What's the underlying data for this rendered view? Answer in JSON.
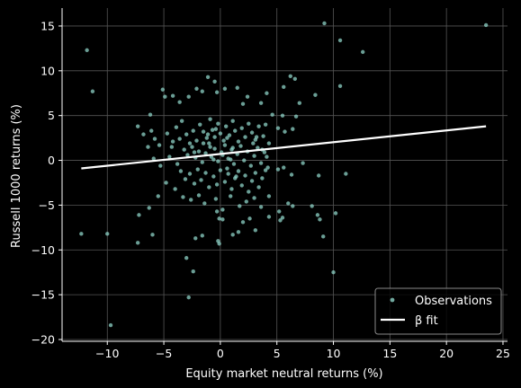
{
  "chart_data": {
    "type": "scatter",
    "xlabel": "Equity market neutral returns (%)",
    "ylabel": "Russell 1000 returns (%)",
    "xlim": [
      -14,
      25.4
    ],
    "ylim": [
      -20.2,
      17
    ],
    "xticks": [
      -10,
      -5,
      0,
      5,
      10,
      15,
      20,
      25
    ],
    "yticks": [
      -20,
      -15,
      -10,
      -5,
      0,
      5,
      10,
      15
    ],
    "xtick_labels": [
      "−10",
      "−5",
      "0",
      "5",
      "10",
      "15",
      "20",
      "25"
    ],
    "ytick_labels": [
      "−20",
      "−15",
      "−10",
      "−5",
      "0",
      "5",
      "10",
      "15"
    ],
    "grid": true,
    "legend_position": "lower-right",
    "legend": [
      "Observations",
      "β fit"
    ],
    "colors": {
      "background": "#000000",
      "points": "#8dd3c7",
      "fit": "#ffffff",
      "grid": "#555555",
      "axes": "#ffffff"
    },
    "series": [
      {
        "name": "Observations",
        "kind": "scatter",
        "points": [
          [
            -11.8,
            12.3
          ],
          [
            -11.3,
            7.7
          ],
          [
            -12.3,
            -8.2
          ],
          [
            -10.0,
            -8.2
          ],
          [
            -9.7,
            -18.4
          ],
          [
            9.2,
            15.3
          ],
          [
            10.6,
            13.4
          ],
          [
            12.6,
            12.1
          ],
          [
            23.5,
            15.1
          ],
          [
            -6.2,
            5.1
          ],
          [
            -5.1,
            7.9
          ],
          [
            -4.9,
            7.1
          ],
          [
            -4.2,
            7.2
          ],
          [
            -3.6,
            6.5
          ],
          [
            -2.8,
            7.1
          ],
          [
            -2.1,
            8.0
          ],
          [
            -1.6,
            7.7
          ],
          [
            -1.1,
            9.3
          ],
          [
            -0.5,
            8.8
          ],
          [
            -0.3,
            7.6
          ],
          [
            0.4,
            8.0
          ],
          [
            1.5,
            8.1
          ],
          [
            2.0,
            6.3
          ],
          [
            2.4,
            7.1
          ],
          [
            3.6,
            6.4
          ],
          [
            4.1,
            7.5
          ],
          [
            4.6,
            5.1
          ],
          [
            5.6,
            8.2
          ],
          [
            6.2,
            9.4
          ],
          [
            6.6,
            9.1
          ],
          [
            7.0,
            6.4
          ],
          [
            8.4,
            7.3
          ],
          [
            10.6,
            8.3
          ],
          [
            5.5,
            5.0
          ],
          [
            6.7,
            4.9
          ],
          [
            5.1,
            3.6
          ],
          [
            5.7,
            3.2
          ],
          [
            6.4,
            3.5
          ],
          [
            4.0,
            4.0
          ],
          [
            -7.3,
            3.8
          ],
          [
            -6.8,
            2.9
          ],
          [
            -6.1,
            3.3
          ],
          [
            -5.8,
            2.4
          ],
          [
            -6.4,
            1.5
          ],
          [
            -5.4,
            1.7
          ],
          [
            -4.7,
            3.0
          ],
          [
            -4.2,
            2.1
          ],
          [
            -3.9,
            3.7
          ],
          [
            -3.4,
            4.4
          ],
          [
            -3.0,
            2.9
          ],
          [
            -2.7,
            1.9
          ],
          [
            -2.4,
            3.3
          ],
          [
            -2.1,
            2.2
          ],
          [
            -1.8,
            4.0
          ],
          [
            -1.5,
            3.2
          ],
          [
            -1.2,
            2.5
          ],
          [
            -0.9,
            4.6
          ],
          [
            -0.7,
            3.4
          ],
          [
            -0.5,
            2.6
          ],
          [
            -0.2,
            4.1
          ],
          [
            0.0,
            3.0
          ],
          [
            0.3,
            2.2
          ],
          [
            0.5,
            3.8
          ],
          [
            0.8,
            2.8
          ],
          [
            1.1,
            4.4
          ],
          [
            1.3,
            3.3
          ],
          [
            1.6,
            2.1
          ],
          [
            1.9,
            3.6
          ],
          [
            2.2,
            2.6
          ],
          [
            2.5,
            4.1
          ],
          [
            2.8,
            3.1
          ],
          [
            3.1,
            2.3
          ],
          [
            3.4,
            3.8
          ],
          [
            3.8,
            2.7
          ],
          [
            4.3,
            1.9
          ],
          [
            -3.2,
            1.2
          ],
          [
            -2.9,
            0.6
          ],
          [
            -2.5,
            1.5
          ],
          [
            -2.2,
            0.3
          ],
          [
            -1.9,
            1.0
          ],
          [
            -1.6,
            -0.2
          ],
          [
            -1.3,
            0.8
          ],
          [
            -1.0,
            1.9
          ],
          [
            -0.8,
            0.4
          ],
          [
            -0.5,
            1.3
          ],
          [
            -0.2,
            -0.1
          ],
          [
            0.1,
            0.9
          ],
          [
            0.4,
            1.7
          ],
          [
            0.7,
            0.2
          ],
          [
            1.0,
            1.2
          ],
          [
            1.2,
            -0.4
          ],
          [
            1.5,
            0.7
          ],
          [
            1.8,
            1.6
          ],
          [
            2.1,
            0.0
          ],
          [
            2.4,
            1.0
          ],
          [
            2.7,
            -0.6
          ],
          [
            3.0,
            0.5
          ],
          [
            3.3,
            1.4
          ],
          [
            3.6,
            -0.3
          ],
          [
            3.9,
            0.9
          ],
          [
            4.2,
            -0.8
          ],
          [
            -3.8,
            -0.4
          ],
          [
            -4.5,
            0.4
          ],
          [
            -5.3,
            -0.6
          ],
          [
            -5.9,
            0.2
          ],
          [
            -3.5,
            -1.2
          ],
          [
            -3.1,
            -2.1
          ],
          [
            -2.7,
            -1.5
          ],
          [
            -2.3,
            -2.6
          ],
          [
            -2.0,
            -1.0
          ],
          [
            -1.7,
            -2.2
          ],
          [
            -1.3,
            -1.4
          ],
          [
            -1.0,
            -3.0
          ],
          [
            -0.6,
            -1.8
          ],
          [
            -0.3,
            -2.7
          ],
          [
            0.0,
            -1.1
          ],
          [
            0.4,
            -2.4
          ],
          [
            0.7,
            -1.5
          ],
          [
            1.0,
            -3.2
          ],
          [
            1.3,
            -2.0
          ],
          [
            1.6,
            -1.2
          ],
          [
            1.9,
            -2.8
          ],
          [
            2.2,
            -1.7
          ],
          [
            2.5,
            -3.5
          ],
          [
            2.8,
            -2.3
          ],
          [
            3.1,
            -1.4
          ],
          [
            3.4,
            -3.0
          ],
          [
            3.7,
            -2.0
          ],
          [
            4.0,
            -1.1
          ],
          [
            5.1,
            -1.0
          ],
          [
            5.6,
            -0.8
          ],
          [
            6.3,
            -1.6
          ],
          [
            7.3,
            -0.3
          ],
          [
            11.1,
            -1.5
          ],
          [
            8.7,
            -1.7
          ],
          [
            -4.8,
            -2.5
          ],
          [
            -4.0,
            -3.2
          ],
          [
            -3.3,
            -4.1
          ],
          [
            -2.6,
            -4.4
          ],
          [
            -1.9,
            -3.9
          ],
          [
            -1.4,
            -4.8
          ],
          [
            -0.4,
            -4.3
          ],
          [
            0.2,
            -5.5
          ],
          [
            0.9,
            -4.0
          ],
          [
            1.7,
            -5.1
          ],
          [
            2.3,
            -4.6
          ],
          [
            3.0,
            -4.2
          ],
          [
            3.6,
            -5.2
          ],
          [
            4.3,
            -4.0
          ],
          [
            5.2,
            -5.7
          ],
          [
            6.0,
            -4.8
          ],
          [
            6.4,
            -5.1
          ],
          [
            5.5,
            -6.4
          ],
          [
            -5.5,
            -4.0
          ],
          [
            -6.3,
            -5.3
          ],
          [
            -7.2,
            -6.1
          ],
          [
            -6.0,
            -8.3
          ],
          [
            -7.3,
            -9.2
          ],
          [
            -2.2,
            -8.7
          ],
          [
            -1.6,
            -8.4
          ],
          [
            -0.3,
            -5.7
          ],
          [
            -0.1,
            -6.5
          ],
          [
            0.2,
            -6.6
          ],
          [
            -0.2,
            -9.0
          ],
          [
            -0.1,
            -9.3
          ],
          [
            1.1,
            -8.3
          ],
          [
            1.6,
            -8.0
          ],
          [
            2.0,
            -6.9
          ],
          [
            2.6,
            -6.5
          ],
          [
            3.1,
            -7.8
          ],
          [
            4.3,
            -6.3
          ],
          [
            5.3,
            -6.7
          ],
          [
            8.1,
            -5.1
          ],
          [
            8.6,
            -6.1
          ],
          [
            8.8,
            -6.6
          ],
          [
            9.1,
            -8.5
          ],
          [
            10.2,
            -5.9
          ],
          [
            -3.0,
            -10.9
          ],
          [
            -2.4,
            -12.4
          ],
          [
            -2.8,
            -15.3
          ],
          [
            10.0,
            -12.5
          ],
          [
            -0.9,
            1.5
          ],
          [
            -0.6,
            0.1
          ],
          [
            0.2,
            0.6
          ],
          [
            0.6,
            -0.9
          ],
          [
            0.9,
            0.1
          ],
          [
            1.4,
            -1.8
          ],
          [
            -1.1,
            2.9
          ],
          [
            -0.4,
            3.5
          ],
          [
            0.6,
            2.5
          ],
          [
            1.1,
            1.4
          ],
          [
            -1.5,
            1.9
          ],
          [
            -2.3,
            0.9
          ],
          [
            2.9,
            1.9
          ],
          [
            3.2,
            2.6
          ],
          [
            3.7,
            1.2
          ],
          [
            4.1,
            0.4
          ],
          [
            -3.6,
            2.4
          ],
          [
            -4.3,
            1.5
          ]
        ]
      },
      {
        "name": "β fit",
        "kind": "line",
        "points": [
          [
            -12.3,
            -0.9
          ],
          [
            23.5,
            3.8
          ]
        ]
      }
    ]
  }
}
